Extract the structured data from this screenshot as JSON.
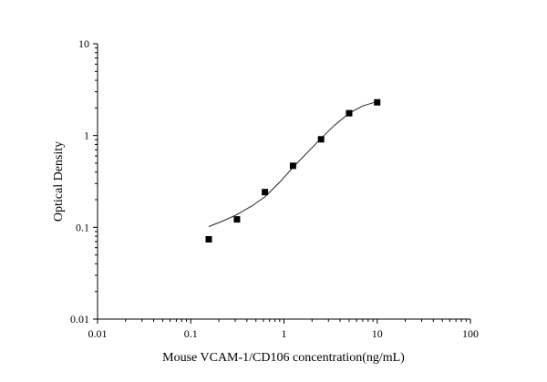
{
  "chart_data": {
    "type": "scatter",
    "title": "",
    "xlabel": "Mouse VCAM-1/CD106 concentration(ng/mL)",
    "ylabel": "Optical Density",
    "x_scale": "log",
    "y_scale": "log",
    "xlim": [
      0.01,
      100
    ],
    "ylim": [
      0.01,
      10
    ],
    "x_ticks": [
      "0.01",
      "0.1",
      "1",
      "10",
      "100"
    ],
    "y_ticks": [
      "0.01",
      "0.1",
      "1",
      "10"
    ],
    "grid": false,
    "legend": "none",
    "series": [
      {
        "points": [
          {
            "x": 0.156,
            "y": 0.074
          },
          {
            "x": 0.313,
            "y": 0.122
          },
          {
            "x": 0.625,
            "y": 0.242
          },
          {
            "x": 1.25,
            "y": 0.468
          },
          {
            "x": 2.5,
            "y": 0.91
          },
          {
            "x": 5,
            "y": 1.75
          },
          {
            "x": 10,
            "y": 2.3
          }
        ]
      }
    ],
    "fit_curve": [
      {
        "x": 0.156,
        "y": 0.102
      },
      {
        "x": 0.22,
        "y": 0.117
      },
      {
        "x": 0.313,
        "y": 0.138
      },
      {
        "x": 0.45,
        "y": 0.17
      },
      {
        "x": 0.625,
        "y": 0.215
      },
      {
        "x": 0.9,
        "y": 0.31
      },
      {
        "x": 1.25,
        "y": 0.45
      },
      {
        "x": 1.8,
        "y": 0.66
      },
      {
        "x": 2.5,
        "y": 0.93
      },
      {
        "x": 3.5,
        "y": 1.3
      },
      {
        "x": 5,
        "y": 1.75
      },
      {
        "x": 7,
        "y": 2.1
      },
      {
        "x": 10,
        "y": 2.35
      }
    ]
  }
}
